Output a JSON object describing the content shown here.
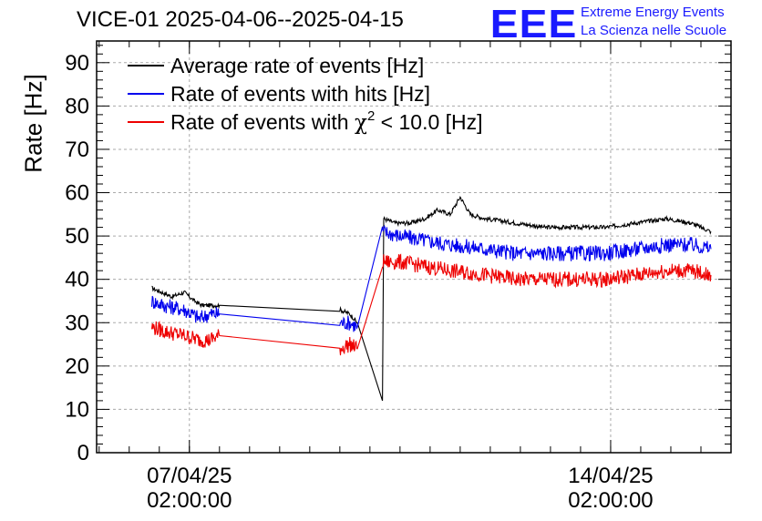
{
  "title": "VICE-01 2025-04-06--2025-04-15",
  "logo": {
    "mark": "EEE",
    "line1": "Extreme Energy Events",
    "line2": "La Scienza nelle Scuole"
  },
  "chart_data": {
    "type": "line",
    "ylabel": "Rate [Hz]",
    "ylim": [
      0,
      95
    ],
    "yticks": [
      0,
      10,
      20,
      30,
      40,
      50,
      60,
      70,
      80,
      90
    ],
    "xlim": [
      "2025-04-05T13:00",
      "2025-04-16T02:00"
    ],
    "xticks": [
      {
        "date": "07/04/25",
        "time": "02:00:00",
        "x": "2025-04-07T02:00"
      },
      {
        "date": "14/04/25",
        "time": "02:00:00",
        "x": "2025-04-14T02:00"
      }
    ],
    "grid": true,
    "legend_position": "top-left",
    "colors": {
      "average": "#000000",
      "hits": "#0000ee",
      "chi2": "#ee0000"
    },
    "series": [
      {
        "name": "Average rate of events [Hz]",
        "color": "#000000",
        "noise": 0.5,
        "points": [
          [
            "2025-04-06T11:00",
            38
          ],
          [
            "2025-04-06T15:00",
            37
          ],
          [
            "2025-04-06T19:00",
            36
          ],
          [
            "2025-04-07T00:00",
            37
          ],
          [
            "2025-04-07T04:00",
            35
          ],
          [
            "2025-04-07T07:00",
            34
          ],
          [
            "2025-04-07T10:00",
            34
          ],
          [
            "2025-04-07T14:00",
            34
          ],
          [
            "2025-04-09T14:00",
            33
          ],
          [
            "2025-04-09T18:00",
            32
          ],
          [
            "2025-04-09T21:00",
            30
          ],
          [
            "2025-04-10T07:00",
            12
          ],
          [
            "2025-04-10T07:30",
            54
          ],
          [
            "2025-04-10T12:00",
            53
          ],
          [
            "2025-04-10T18:00",
            53
          ],
          [
            "2025-04-11T00:00",
            54
          ],
          [
            "2025-04-11T05:00",
            56
          ],
          [
            "2025-04-11T10:00",
            55
          ],
          [
            "2025-04-11T14:00",
            59
          ],
          [
            "2025-04-11T18:00",
            55
          ],
          [
            "2025-04-12T00:00",
            54
          ],
          [
            "2025-04-12T12:00",
            53
          ],
          [
            "2025-04-13T00:00",
            52
          ],
          [
            "2025-04-13T12:00",
            52
          ],
          [
            "2025-04-14T00:00",
            52
          ],
          [
            "2025-04-14T12:00",
            53
          ],
          [
            "2025-04-15T00:00",
            54
          ],
          [
            "2025-04-15T10:00",
            53
          ],
          [
            "2025-04-15T18:00",
            51
          ]
        ]
      },
      {
        "name": "Rate of events with hits [Hz]",
        "color": "#0000ee",
        "noise": 1.8,
        "points": [
          [
            "2025-04-06T11:00",
            35
          ],
          [
            "2025-04-06T16:00",
            34
          ],
          [
            "2025-04-07T00:00",
            33
          ],
          [
            "2025-04-07T06:00",
            31
          ],
          [
            "2025-04-07T10:00",
            32
          ],
          [
            "2025-04-07T14:00",
            32
          ],
          [
            "2025-04-09T14:00",
            30
          ],
          [
            "2025-04-09T18:00",
            30
          ],
          [
            "2025-04-09T21:00",
            29
          ],
          [
            "2025-04-10T07:00",
            51
          ],
          [
            "2025-04-10T14:00",
            50
          ],
          [
            "2025-04-11T00:00",
            49
          ],
          [
            "2025-04-11T10:00",
            48
          ],
          [
            "2025-04-12T00:00",
            47
          ],
          [
            "2025-04-12T12:00",
            46
          ],
          [
            "2025-04-13T00:00",
            46
          ],
          [
            "2025-04-13T12:00",
            46
          ],
          [
            "2025-04-14T00:00",
            46
          ],
          [
            "2025-04-14T12:00",
            47
          ],
          [
            "2025-04-15T00:00",
            48
          ],
          [
            "2025-04-15T10:00",
            48
          ],
          [
            "2025-04-15T18:00",
            47
          ]
        ]
      },
      {
        "name": "Rate of events with χ² < 10.0 [Hz]",
        "color": "#ee0000",
        "noise": 1.8,
        "points": [
          [
            "2025-04-06T11:00",
            29
          ],
          [
            "2025-04-06T16:00",
            28
          ],
          [
            "2025-04-07T00:00",
            27
          ],
          [
            "2025-04-07T06:00",
            26
          ],
          [
            "2025-04-07T10:00",
            26
          ],
          [
            "2025-04-07T14:00",
            27
          ],
          [
            "2025-04-09T14:00",
            24
          ],
          [
            "2025-04-09T18:00",
            25
          ],
          [
            "2025-04-09T21:00",
            24
          ],
          [
            "2025-04-10T07:00",
            44
          ],
          [
            "2025-04-10T14:00",
            44
          ],
          [
            "2025-04-11T00:00",
            43
          ],
          [
            "2025-04-11T10:00",
            42
          ],
          [
            "2025-04-12T00:00",
            41
          ],
          [
            "2025-04-12T12:00",
            40
          ],
          [
            "2025-04-13T00:00",
            40
          ],
          [
            "2025-04-13T12:00",
            40
          ],
          [
            "2025-04-14T00:00",
            40
          ],
          [
            "2025-04-14T12:00",
            41
          ],
          [
            "2025-04-15T00:00",
            42
          ],
          [
            "2025-04-15T10:00",
            42
          ],
          [
            "2025-04-15T18:00",
            41
          ]
        ]
      }
    ],
    "legend": [
      {
        "label": "Average rate of events [Hz]",
        "color": "#000000"
      },
      {
        "label": "Rate of events with hits [Hz]",
        "color": "#0000ee"
      },
      {
        "label_prefix": "Rate of events with ",
        "label_chi": "χ",
        "label_sup": "2",
        "label_suffix": " < 10.0 [Hz]",
        "color": "#ee0000"
      }
    ]
  }
}
